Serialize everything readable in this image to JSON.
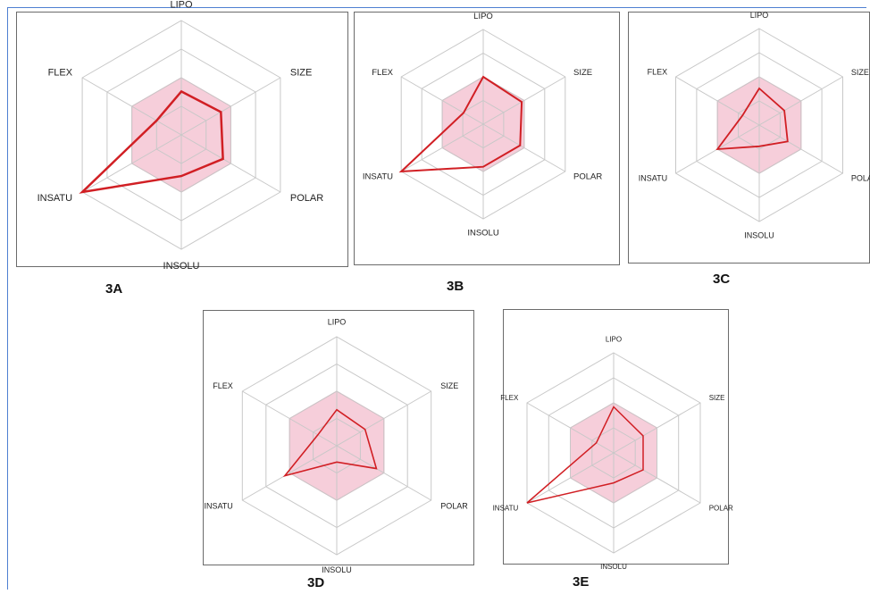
{
  "colors": {
    "frame_border": "#4f7fd1",
    "grid": "#c8c8c8",
    "optimal_fill": "#f5c6d3",
    "optimal_stroke": "#e7a1b6",
    "molecule_line": "#d11f24"
  },
  "chart_data": [
    {
      "type": "radar",
      "caption": "3A",
      "axes": [
        "LIPO",
        "SIZE",
        "POLAR",
        "INSOLU",
        "INSATU",
        "FLEX"
      ],
      "rings": 4,
      "max": 1.0,
      "optimal_range": [
        0.5,
        0.5,
        0.5,
        0.5,
        0.5,
        0.5
      ],
      "values": [
        0.38,
        0.4,
        0.42,
        0.36,
        1.0,
        0.25
      ]
    },
    {
      "type": "radar",
      "caption": "3B",
      "axes": [
        "LIPO",
        "SIZE",
        "POLAR",
        "INSOLU",
        "INSATU",
        "FLEX"
      ],
      "rings": 4,
      "max": 1.0,
      "optimal_range": [
        0.5,
        0.5,
        0.5,
        0.5,
        0.5,
        0.5
      ],
      "values": [
        0.5,
        0.47,
        0.45,
        0.45,
        1.0,
        0.24
      ]
    },
    {
      "type": "radar",
      "caption": "3C",
      "axes": [
        "LIPO",
        "SIZE",
        "POLAR",
        "INSOLU",
        "INSATU",
        "FLEX"
      ],
      "rings": 4,
      "max": 1.0,
      "optimal_range": [
        0.5,
        0.5,
        0.5,
        0.5,
        0.5,
        0.5
      ],
      "values": [
        0.38,
        0.3,
        0.34,
        0.22,
        0.5,
        0.2
      ]
    },
    {
      "type": "radar",
      "caption": "3D",
      "axes": [
        "LIPO",
        "SIZE",
        "POLAR",
        "INSOLU",
        "INSATU",
        "FLEX"
      ],
      "rings": 4,
      "max": 1.0,
      "optimal_range": [
        0.5,
        0.5,
        0.5,
        0.5,
        0.5,
        0.5
      ],
      "values": [
        0.33,
        0.3,
        0.42,
        0.15,
        0.55,
        0.2
      ]
    },
    {
      "type": "radar",
      "caption": "3E",
      "axes": [
        "LIPO",
        "SIZE",
        "POLAR",
        "INSOLU",
        "INSATU",
        "FLEX"
      ],
      "rings": 4,
      "max": 1.0,
      "optimal_range": [
        0.5,
        0.5,
        0.5,
        0.5,
        0.5,
        0.5
      ],
      "values": [
        0.46,
        0.34,
        0.34,
        0.3,
        1.0,
        0.2
      ]
    }
  ]
}
